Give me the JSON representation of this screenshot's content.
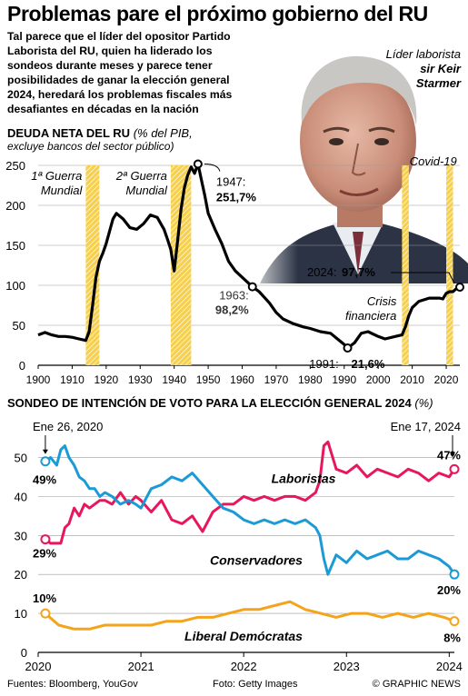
{
  "title": "Problemas pare el próximo gobierno del RU",
  "intro": "Tal parece que el líder del opositor Partido Laborista del RU, quien ha liderado los sondeos durante meses y parece tener posibilidades de ganar la elección general 2024, heredará los problemas fiscales más desafiantes en décadas en la nación",
  "photo": {
    "caption_line1": "Líder laborista",
    "caption_name1": "sir Keir",
    "caption_name2": "Starmer",
    "credit": "Foto: Getty Images"
  },
  "colors": {
    "labour": "#e8175d",
    "conservative": "#1c9ad6",
    "libdem": "#f5a31a",
    "highlight": "#f6d04d"
  },
  "chart_data": [
    {
      "type": "line",
      "title": "DEUDA NETA DEL RU",
      "subtitle": "excluye bancos del sector público)",
      "unit": "(% del PIB,",
      "xlim": [
        1900,
        2024
      ],
      "ylim": [
        0,
        250
      ],
      "xticks": [
        1900,
        1910,
        1920,
        1930,
        1940,
        1950,
        1960,
        1970,
        1980,
        1990,
        2000,
        2010,
        2020
      ],
      "yticks": [
        0,
        50,
        100,
        150,
        200,
        250
      ],
      "grid": true,
      "x": [
        1900,
        1902,
        1904,
        1906,
        1908,
        1910,
        1912,
        1914,
        1915,
        1916,
        1917,
        1918,
        1919,
        1920,
        1922,
        1923,
        1925,
        1927,
        1929,
        1931,
        1933,
        1935,
        1937,
        1938,
        1939,
        1940,
        1941,
        1942,
        1943,
        1944,
        1945,
        1946,
        1947,
        1948,
        1949,
        1950,
        1952,
        1954,
        1956,
        1958,
        1960,
        1963,
        1965,
        1968,
        1970,
        1972,
        1975,
        1978,
        1980,
        1983,
        1986,
        1988,
        1990,
        1991,
        1993,
        1995,
        1997,
        2000,
        2002,
        2005,
        2007,
        2008,
        2009,
        2010,
        2012,
        2015,
        2018,
        2019,
        2020,
        2021,
        2022,
        2023,
        2024
      ],
      "values": [
        38,
        41,
        38,
        36,
        36,
        35,
        33,
        31,
        42,
        75,
        110,
        130,
        140,
        152,
        183,
        190,
        183,
        172,
        170,
        177,
        188,
        185,
        170,
        158,
        145,
        118,
        155,
        195,
        222,
        238,
        248,
        240,
        251.7,
        232,
        212,
        190,
        170,
        152,
        130,
        118,
        110,
        98.2,
        92,
        78,
        66,
        58,
        52,
        48,
        46,
        42,
        40,
        33,
        26,
        21.6,
        28,
        40,
        42,
        36,
        33,
        36,
        38,
        48,
        62,
        72,
        80,
        84,
        84,
        83,
        90,
        92,
        92,
        96,
        97.7
      ],
      "highlights": [
        {
          "label1": "1ª Guerra",
          "label2": "Mundial",
          "from": 1914,
          "to": 1918
        },
        {
          "label1": "2ª Guerra",
          "label2": "Mundial",
          "from": 1939,
          "to": 1945
        },
        {
          "label1": "Crisis",
          "label2": "financiera",
          "from": 2007,
          "to": 2009
        },
        {
          "label1": "Covid-19",
          "label2": "",
          "from": 2020,
          "to": 2022
        }
      ],
      "annotations": [
        {
          "year": "1947:",
          "value": "251,7%"
        },
        {
          "year": "1963:",
          "value": "98,2%"
        },
        {
          "year": "1991:",
          "value": "21,6%"
        },
        {
          "year": "2024:",
          "value": "97,7%"
        }
      ]
    },
    {
      "type": "line",
      "title": "SONDEO DE INTENCIÓN DE VOTO PARA LA ELECCIÓN GENERAL 2024",
      "unit": "(%)",
      "xlim": [
        2020.0,
        2024.05
      ],
      "ylim": [
        0,
        55
      ],
      "xticks": [
        "2020",
        "2021",
        "2022",
        "2023",
        "2024"
      ],
      "yticks": [
        0,
        10,
        20,
        30,
        40,
        50
      ],
      "grid": true,
      "start_label": "Ene 26, 2020",
      "end_label": "Ene 17, 2024",
      "series": [
        {
          "name": "Laboristas",
          "start_value": "29%",
          "end_value": "47%",
          "x": [
            2020.07,
            2020.12,
            2020.18,
            2020.22,
            2020.26,
            2020.3,
            2020.35,
            2020.4,
            2020.45,
            2020.5,
            2020.55,
            2020.6,
            2020.65,
            2020.72,
            2020.8,
            2020.88,
            2020.95,
            2021.0,
            2021.1,
            2021.2,
            2021.3,
            2021.4,
            2021.5,
            2021.6,
            2021.7,
            2021.8,
            2021.9,
            2022.0,
            2022.1,
            2022.2,
            2022.3,
            2022.4,
            2022.5,
            2022.6,
            2022.7,
            2022.74,
            2022.78,
            2022.82,
            2022.9,
            2023.0,
            2023.1,
            2023.2,
            2023.3,
            2023.4,
            2023.5,
            2023.6,
            2023.7,
            2023.8,
            2023.9,
            2024.0,
            2024.05
          ],
          "values": [
            29,
            28,
            28,
            28,
            32,
            33,
            37,
            35,
            38,
            37,
            38,
            39,
            39,
            38,
            41,
            38,
            40,
            39,
            36,
            39,
            34,
            33,
            35,
            31,
            36,
            38,
            38,
            40,
            39,
            40,
            39,
            40,
            40,
            39,
            41,
            44,
            53,
            54,
            47,
            46,
            48,
            45,
            47,
            46,
            45,
            47,
            46,
            44,
            46,
            45,
            47
          ]
        },
        {
          "name": "Conservadores",
          "start_value": "49%",
          "end_value": "20%",
          "x": [
            2020.07,
            2020.12,
            2020.18,
            2020.22,
            2020.26,
            2020.3,
            2020.35,
            2020.4,
            2020.45,
            2020.5,
            2020.55,
            2020.6,
            2020.65,
            2020.72,
            2020.8,
            2020.88,
            2020.95,
            2021.0,
            2021.1,
            2021.2,
            2021.3,
            2021.4,
            2021.5,
            2021.6,
            2021.7,
            2021.8,
            2021.9,
            2022.0,
            2022.1,
            2022.2,
            2022.3,
            2022.4,
            2022.5,
            2022.6,
            2022.7,
            2022.74,
            2022.78,
            2022.82,
            2022.9,
            2023.0,
            2023.1,
            2023.2,
            2023.3,
            2023.4,
            2023.5,
            2023.6,
            2023.7,
            2023.8,
            2023.9,
            2024.0,
            2024.05
          ],
          "values": [
            49,
            50,
            48,
            52,
            53,
            50,
            48,
            45,
            44,
            42,
            42,
            40,
            41,
            40,
            38,
            39,
            38,
            37,
            42,
            43,
            45,
            44,
            46,
            43,
            40,
            37,
            36,
            34,
            33,
            34,
            33,
            34,
            33,
            34,
            32,
            30,
            24,
            20,
            25,
            23,
            26,
            24,
            25,
            26,
            24,
            24,
            26,
            25,
            24,
            22,
            20
          ]
        },
        {
          "name": "Liberal Demócratas",
          "start_value": "10%",
          "end_value": "8%",
          "x": [
            2020.07,
            2020.2,
            2020.35,
            2020.5,
            2020.65,
            2020.8,
            2020.95,
            2021.1,
            2021.25,
            2021.4,
            2021.55,
            2021.7,
            2021.85,
            2022.0,
            2022.15,
            2022.3,
            2022.45,
            2022.6,
            2022.75,
            2022.9,
            2023.05,
            2023.2,
            2023.35,
            2023.5,
            2023.65,
            2023.8,
            2023.95,
            2024.05
          ],
          "values": [
            10,
            7,
            6,
            6,
            7,
            7,
            7,
            7,
            8,
            8,
            9,
            9,
            10,
            11,
            11,
            12,
            13,
            11,
            10,
            9,
            10,
            10,
            9,
            10,
            9,
            10,
            9,
            8
          ]
        }
      ]
    }
  ],
  "footer": {
    "sources": "Fuentes: Bloomberg, YouGov",
    "photo_credit": "Foto: Getty Images",
    "copyright": "© GRAPHIC NEWS"
  }
}
